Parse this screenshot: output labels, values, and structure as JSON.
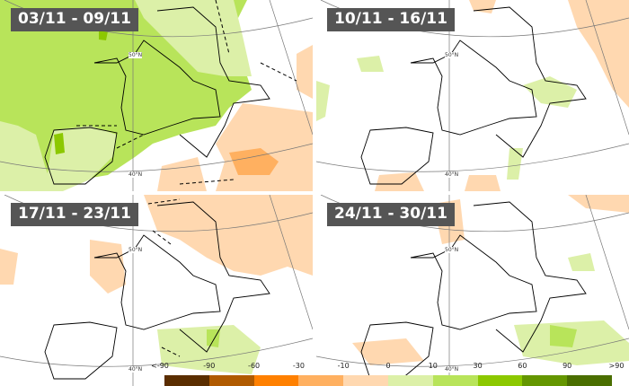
{
  "panels": [
    {
      "title": "03/11 - 09/11",
      "lat_labels": [
        "50°N",
        "40°N"
      ]
    },
    {
      "title": "10/11 - 16/11",
      "lat_labels": [
        "50°N",
        "40°N"
      ]
    },
    {
      "title": "17/11 - 23/11",
      "lat_labels": [
        "50°N",
        "40°N"
      ]
    },
    {
      "title": "24/11 - 30/11",
      "lat_labels": [
        "50°N",
        "40°N"
      ]
    }
  ],
  "legend": {
    "labels": [
      "<-90",
      "-90",
      "-60",
      "-30",
      "-10",
      "0",
      "10",
      "30",
      "60",
      "90",
      ">90"
    ],
    "colors": [
      "#5a2d00",
      "#b05a00",
      "#ff8000",
      "#ffb060",
      "#ffd8b0",
      "#dcf0a8",
      "#b8e45a",
      "#8cc800",
      "#649600",
      "#4a6e00"
    ]
  }
}
